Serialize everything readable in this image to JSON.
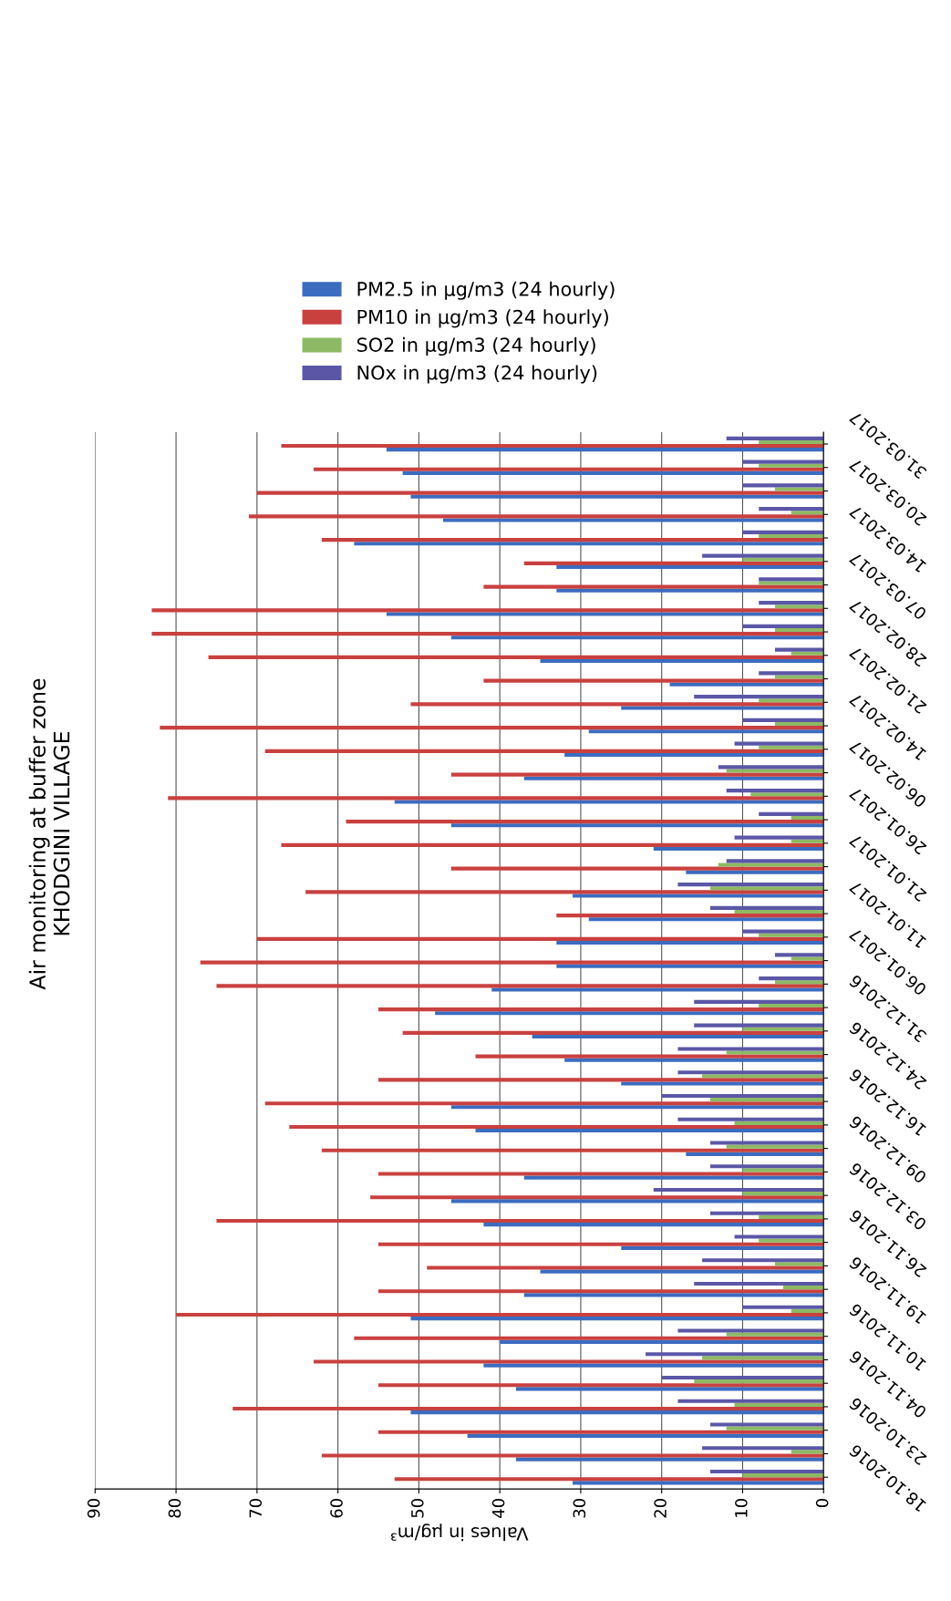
{
  "chart_data": {
    "type": "bar",
    "orientation": "horizontal",
    "title": "Air monitoring at buffer zone\nKHODGINI VILLAGE",
    "xlabel": "Values in µg/m³",
    "categories": [
      "31.03.2017",
      null,
      "20.03.2017",
      null,
      "14.03.2017",
      null,
      "07.03.2017",
      null,
      "28.02.2017",
      null,
      "21.02.2017",
      null,
      "14.02.2017",
      null,
      "06.02.2017",
      null,
      "26.01.2017",
      null,
      "21.01.2017",
      null,
      "11.01.2017",
      null,
      "06.01.2017",
      null,
      "31.12.2016",
      null,
      "24.12.2016",
      null,
      "16.12.2016",
      null,
      "09.12.2016",
      null,
      "03.12.2016",
      null,
      "26.11.2016",
      null,
      "19.11.2016",
      null,
      "10.11.2016",
      null,
      "04.11.2016",
      null,
      "23.10.2016",
      null,
      "18.10.2016"
    ],
    "series": [
      {
        "name": "PM2.5 in µg/m3 (24 hourly)",
        "color": "#3b6cc0",
        "values": [
          54,
          52,
          51,
          47,
          58,
          33,
          33,
          54,
          46,
          35,
          19,
          25,
          29,
          32,
          37,
          53,
          46,
          21,
          17,
          31,
          29,
          33,
          33,
          41,
          48,
          36,
          32,
          25,
          46,
          43,
          17,
          37,
          46,
          42,
          25,
          35,
          37,
          51,
          40,
          42,
          38,
          51,
          44,
          38,
          31
        ]
      },
      {
        "name": "PM10 in µg/m3 (24 hourly)",
        "color": "#c9413f",
        "values": [
          67,
          63,
          70,
          71,
          62,
          37,
          42,
          83,
          83,
          76,
          42,
          51,
          82,
          69,
          46,
          81,
          59,
          67,
          46,
          64,
          33,
          70,
          77,
          75,
          55,
          52,
          43,
          55,
          69,
          66,
          62,
          55,
          56,
          75,
          55,
          49,
          55,
          80,
          58,
          63,
          55,
          73,
          55,
          62,
          53
        ]
      },
      {
        "name": "SO2 in µg/m3 (24 hourly)",
        "color": "#8db964",
        "values": [
          8,
          8,
          6,
          4,
          8,
          10,
          8,
          6,
          6,
          4,
          6,
          8,
          6,
          8,
          12,
          9,
          4,
          4,
          13,
          14,
          11,
          8,
          4,
          6,
          8,
          10,
          12,
          15,
          14,
          11,
          12,
          10,
          10,
          8,
          8,
          6,
          5,
          4,
          12,
          15,
          16,
          11,
          12,
          4,
          10
        ]
      },
      {
        "name": "NOx in µg/m3 (24 hourly)",
        "color": "#5b57a6",
        "values": [
          12,
          10,
          10,
          8,
          10,
          15,
          8,
          8,
          10,
          6,
          8,
          16,
          10,
          11,
          13,
          12,
          8,
          11,
          12,
          18,
          14,
          10,
          6,
          8,
          16,
          16,
          18,
          18,
          20,
          18,
          14,
          14,
          21,
          14,
          11,
          15,
          16,
          10,
          18,
          22,
          20,
          18,
          14,
          15,
          14
        ]
      }
    ],
    "xlim": [
      90,
      0
    ],
    "xticks": [
      0,
      10,
      20,
      30,
      40,
      50,
      60,
      70,
      80,
      90
    ],
    "grid": "x",
    "legend": "top"
  }
}
